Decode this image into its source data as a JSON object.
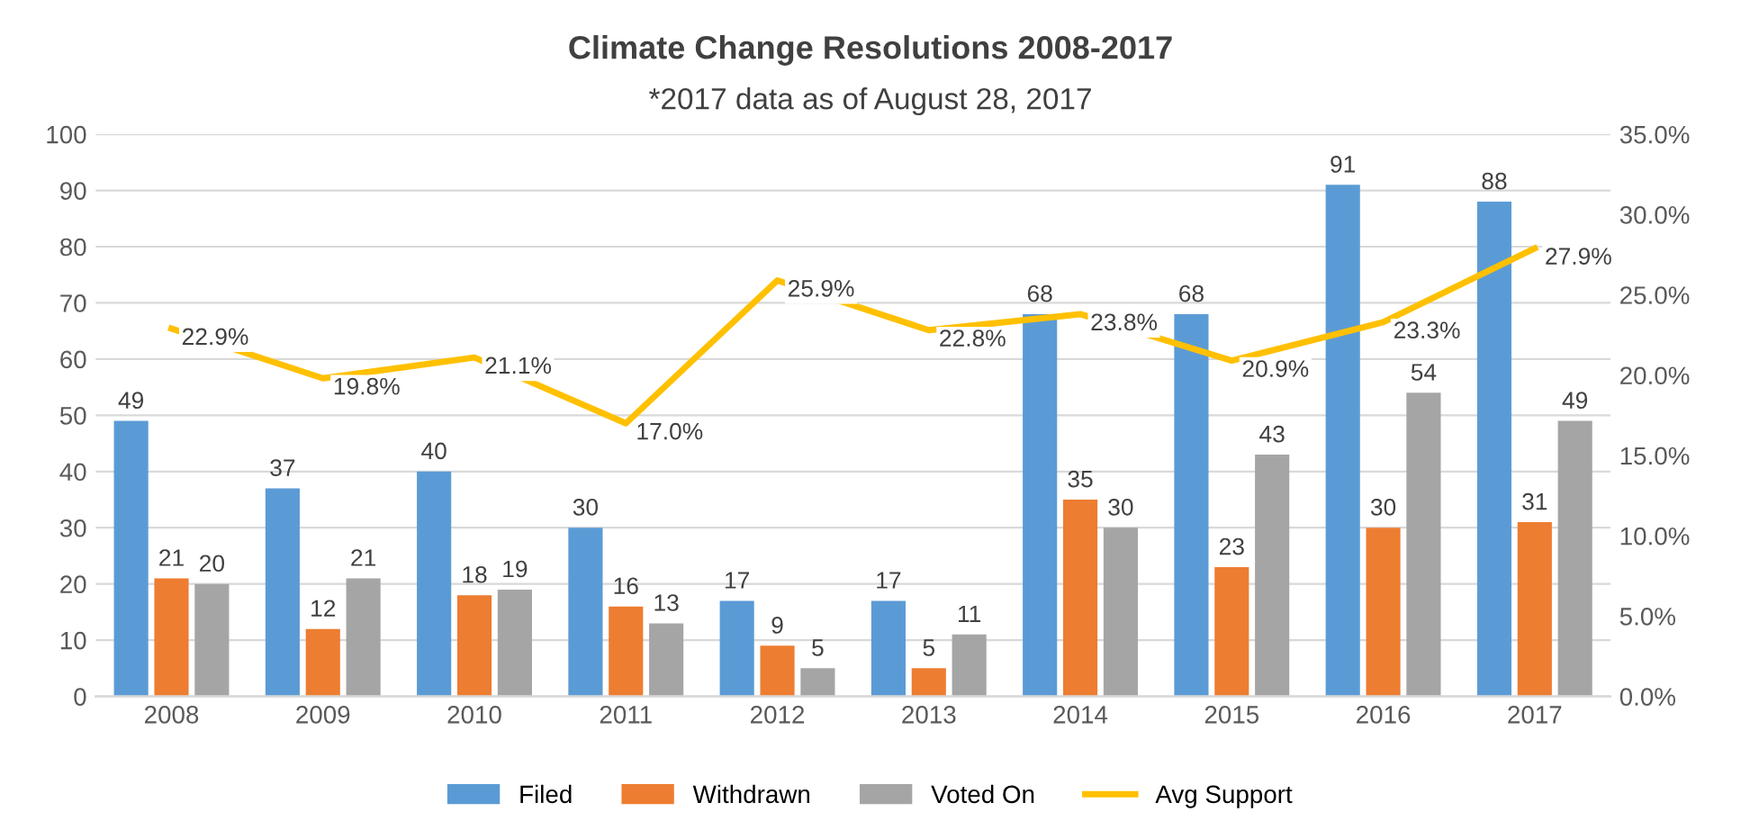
{
  "chart_data": {
    "type": "bar",
    "title": "Climate Change Resolutions 2008-2017",
    "subtitle": "*2017 data as of August 28, 2017",
    "categories": [
      "2008",
      "2009",
      "2010",
      "2011",
      "2012",
      "2013",
      "2014",
      "2015",
      "2016",
      "2017"
    ],
    "series": [
      {
        "name": "Filed",
        "color": "#5b9bd5",
        "values": [
          49,
          37,
          40,
          30,
          17,
          17,
          68,
          68,
          91,
          88
        ],
        "value_labels": [
          "49",
          "37",
          "40",
          "30",
          "17",
          "17",
          "68",
          "68",
          "91",
          "88"
        ]
      },
      {
        "name": "Withdrawn",
        "color": "#ed7d31",
        "values": [
          21,
          12,
          18,
          16,
          9,
          5,
          35,
          23,
          30,
          31
        ],
        "value_labels": [
          "21",
          "12",
          "18",
          "16",
          "9",
          "5",
          "35",
          "23",
          "30",
          "31"
        ]
      },
      {
        "name": "Voted On",
        "color": "#a5a5a5",
        "values": [
          20,
          21,
          19,
          13,
          5,
          11,
          30,
          43,
          54,
          49
        ],
        "value_labels": [
          "20",
          "21",
          "19",
          "13",
          "5",
          "11",
          "30",
          "43",
          "54",
          "49"
        ]
      },
      {
        "name": "Avg Support",
        "type": "line",
        "axis": "y2",
        "color": "#ffc000",
        "values": [
          22.9,
          19.8,
          21.1,
          17.0,
          25.9,
          22.8,
          23.8,
          20.9,
          23.3,
          27.9
        ],
        "value_labels": [
          "22.9%",
          "19.8%",
          "21.1%",
          "17.0%",
          "25.9%",
          "22.8%",
          "23.8%",
          "20.9%",
          "23.3%",
          "27.9%"
        ]
      }
    ],
    "ylim": [
      0,
      100
    ],
    "yticks": [
      0,
      10,
      20,
      30,
      40,
      50,
      60,
      70,
      80,
      90,
      100
    ],
    "y2lim": [
      0,
      35
    ],
    "y2ticks": [
      {
        "value": 0,
        "label": "0.0%"
      },
      {
        "value": 5,
        "label": "5.0%"
      },
      {
        "value": 10,
        "label": "10.0%"
      },
      {
        "value": 15,
        "label": "15.0%"
      },
      {
        "value": 20,
        "label": "20.0%"
      },
      {
        "value": 25,
        "label": "25.0%"
      },
      {
        "value": 30,
        "label": "30.0%"
      },
      {
        "value": 35,
        "label": "35.0%"
      }
    ],
    "grid": "y",
    "legend": "bottom"
  }
}
